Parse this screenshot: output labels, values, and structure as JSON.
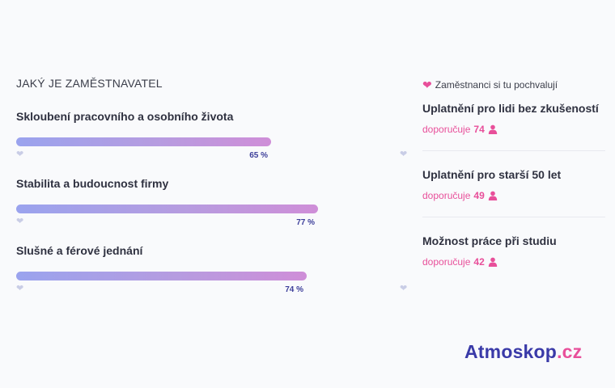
{
  "section_title": "JAKÝ JE ZAMĚSTNAVATEL",
  "ratings": [
    {
      "label": "Skloubení pracovního a osobního života",
      "value": 65,
      "value_text": "65 %"
    },
    {
      "label": "Stabilita a budoucnost firmy",
      "value": 77,
      "value_text": "77 %"
    },
    {
      "label": "Slušné a férové jednání",
      "value": 74,
      "value_text": "74 %"
    }
  ],
  "praise": {
    "header": "Zaměstnanci si tu pochvalují",
    "reco_prefix": "doporučuje",
    "items": [
      {
        "title": "Uplatnění pro lidi bez zkušeností",
        "count": "74"
      },
      {
        "title": "Uplatnění pro starší 50 let",
        "count": "49"
      },
      {
        "title": "Možnost práce při studiu",
        "count": "42"
      }
    ]
  },
  "logo": {
    "main": "Atmoskop",
    "suffix": ".cz"
  },
  "colors": {
    "accent_pink": "#e84f9a",
    "accent_blue": "#3a3aa8",
    "bar_start": "#9aa3ee",
    "bar_end": "#cf8ed8"
  },
  "icons": {
    "praise_header": "heart-icon",
    "reco": "person-icon",
    "bar_markers": "heart-icon"
  }
}
